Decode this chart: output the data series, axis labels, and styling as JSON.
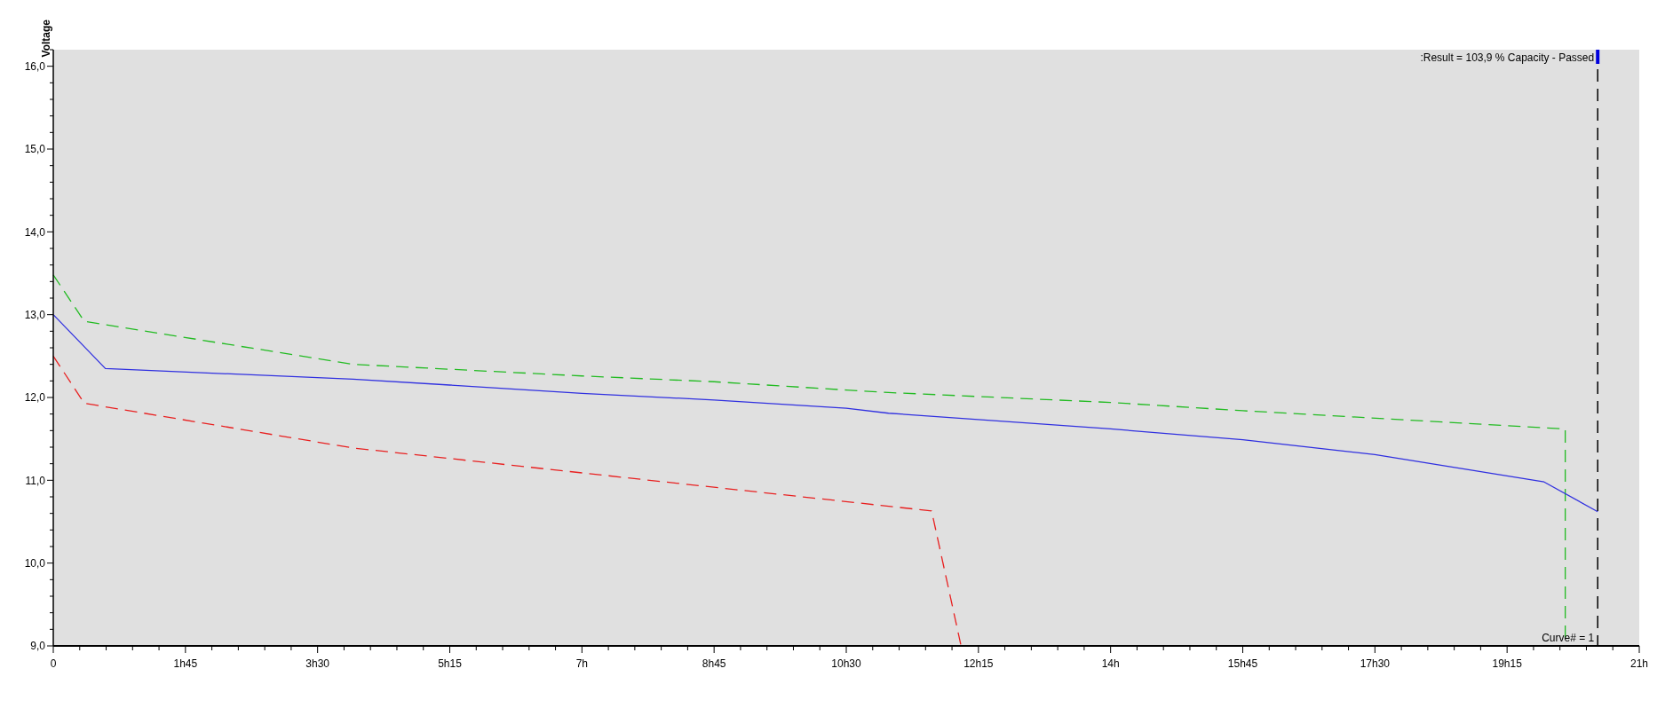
{
  "chart_data": {
    "type": "line",
    "ylabel": "Voltage",
    "xlim": [
      0,
      21
    ],
    "ylim": [
      9,
      16.2
    ],
    "xticks": [
      {
        "value": 0,
        "label": "0"
      },
      {
        "value": 0.35,
        "label": null
      },
      {
        "value": 0.7,
        "label": null
      },
      {
        "value": 1.05,
        "label": null
      },
      {
        "value": 1.4,
        "label": null
      },
      {
        "value": 1.75,
        "label": "1h45"
      },
      {
        "value": 2.1,
        "label": null
      },
      {
        "value": 2.45,
        "label": null
      },
      {
        "value": 2.8,
        "label": null
      },
      {
        "value": 3.15,
        "label": null
      },
      {
        "value": 3.5,
        "label": "3h30"
      },
      {
        "value": 3.85,
        "label": null
      },
      {
        "value": 4.2,
        "label": null
      },
      {
        "value": 4.55,
        "label": null
      },
      {
        "value": 4.9,
        "label": null
      },
      {
        "value": 5.25,
        "label": "5h15"
      },
      {
        "value": 5.6,
        "label": null
      },
      {
        "value": 5.95,
        "label": null
      },
      {
        "value": 6.3,
        "label": null
      },
      {
        "value": 6.65,
        "label": null
      },
      {
        "value": 7,
        "label": "7h"
      },
      {
        "value": 7.35,
        "label": null
      },
      {
        "value": 7.7,
        "label": null
      },
      {
        "value": 8.05,
        "label": null
      },
      {
        "value": 8.4,
        "label": null
      },
      {
        "value": 8.75,
        "label": "8h45"
      },
      {
        "value": 9.1,
        "label": null
      },
      {
        "value": 9.45,
        "label": null
      },
      {
        "value": 9.8,
        "label": null
      },
      {
        "value": 10.15,
        "label": null
      },
      {
        "value": 10.5,
        "label": "10h30"
      },
      {
        "value": 10.85,
        "label": null
      },
      {
        "value": 11.2,
        "label": null
      },
      {
        "value": 11.55,
        "label": null
      },
      {
        "value": 11.9,
        "label": null
      },
      {
        "value": 12.25,
        "label": "12h15"
      },
      {
        "value": 12.6,
        "label": null
      },
      {
        "value": 12.95,
        "label": null
      },
      {
        "value": 13.3,
        "label": null
      },
      {
        "value": 13.65,
        "label": null
      },
      {
        "value": 14,
        "label": "14h"
      },
      {
        "value": 14.35,
        "label": null
      },
      {
        "value": 14.7,
        "label": null
      },
      {
        "value": 15.05,
        "label": null
      },
      {
        "value": 15.4,
        "label": null
      },
      {
        "value": 15.75,
        "label": "15h45"
      },
      {
        "value": 16.1,
        "label": null
      },
      {
        "value": 16.45,
        "label": null
      },
      {
        "value": 16.8,
        "label": null
      },
      {
        "value": 17.15,
        "label": null
      },
      {
        "value": 17.5,
        "label": "17h30"
      },
      {
        "value": 17.85,
        "label": null
      },
      {
        "value": 18.2,
        "label": null
      },
      {
        "value": 18.55,
        "label": null
      },
      {
        "value": 18.9,
        "label": null
      },
      {
        "value": 19.25,
        "label": "19h15"
      },
      {
        "value": 19.6,
        "label": null
      },
      {
        "value": 19.95,
        "label": null
      },
      {
        "value": 20.3,
        "label": null
      },
      {
        "value": 20.65,
        "label": null
      },
      {
        "value": 21,
        "label": "21h"
      }
    ],
    "yticks": [
      {
        "value": 9,
        "label": "9,0"
      },
      {
        "value": 9.2,
        "label": null
      },
      {
        "value": 9.4,
        "label": null
      },
      {
        "value": 9.6,
        "label": null
      },
      {
        "value": 9.8,
        "label": null
      },
      {
        "value": 10,
        "label": "10,0"
      },
      {
        "value": 10.2,
        "label": null
      },
      {
        "value": 10.4,
        "label": null
      },
      {
        "value": 10.6,
        "label": null
      },
      {
        "value": 10.8,
        "label": null
      },
      {
        "value": 11,
        "label": "11,0"
      },
      {
        "value": 11.2,
        "label": null
      },
      {
        "value": 11.4,
        "label": null
      },
      {
        "value": 11.6,
        "label": null
      },
      {
        "value": 11.8,
        "label": null
      },
      {
        "value": 12,
        "label": "12,0"
      },
      {
        "value": 12.2,
        "label": null
      },
      {
        "value": 12.4,
        "label": null
      },
      {
        "value": 12.6,
        "label": null
      },
      {
        "value": 12.8,
        "label": null
      },
      {
        "value": 13,
        "label": "13,0"
      },
      {
        "value": 13.2,
        "label": null
      },
      {
        "value": 13.4,
        "label": null
      },
      {
        "value": 13.6,
        "label": null
      },
      {
        "value": 13.8,
        "label": null
      },
      {
        "value": 14,
        "label": "14,0"
      },
      {
        "value": 14.2,
        "label": null
      },
      {
        "value": 14.4,
        "label": null
      },
      {
        "value": 14.6,
        "label": null
      },
      {
        "value": 14.8,
        "label": null
      },
      {
        "value": 15,
        "label": "15,0"
      },
      {
        "value": 15.2,
        "label": null
      },
      {
        "value": 15.4,
        "label": null
      },
      {
        "value": 15.6,
        "label": null
      },
      {
        "value": 15.8,
        "label": null
      },
      {
        "value": 16,
        "label": "16,0"
      },
      {
        "value": 16.2,
        "label": null
      }
    ],
    "series": [
      {
        "color": "#22bb22",
        "line_style": "dashed",
        "x": [
          0,
          0.41,
          3.97,
          7,
          8.75,
          10.5,
          11.06,
          14,
          15.75,
          20.02,
          20.02
        ],
        "values": [
          13.48,
          12.92,
          12.4,
          12.26,
          12.19,
          12.09,
          12.06,
          11.94,
          11.84,
          11.62,
          9.0
        ]
      },
      {
        "color": "#3030e0",
        "line_style": "solid",
        "x": [
          0,
          0.69,
          3.97,
          5.25,
          7,
          8.75,
          10.5,
          11.06,
          14,
          15.75,
          17.5,
          19.74,
          20.45
        ],
        "values": [
          13.0,
          12.35,
          12.22,
          12.15,
          12.05,
          11.97,
          11.87,
          11.81,
          11.62,
          11.49,
          11.31,
          10.98,
          10.62
        ]
      },
      {
        "color": "#e82020",
        "line_style": "dashed",
        "x": [
          0,
          0.41,
          3.97,
          11.63,
          12.02
        ],
        "values": [
          12.5,
          11.93,
          11.39,
          10.63,
          9.0
        ]
      }
    ],
    "ref_lines": [
      {
        "axis": "x",
        "value": 20.45,
        "color": "#000000",
        "line_style": "dashed"
      }
    ],
    "annotations": [
      ":Result = 103,9 % Capacity - Passed",
      "Curve# = 1"
    ]
  }
}
